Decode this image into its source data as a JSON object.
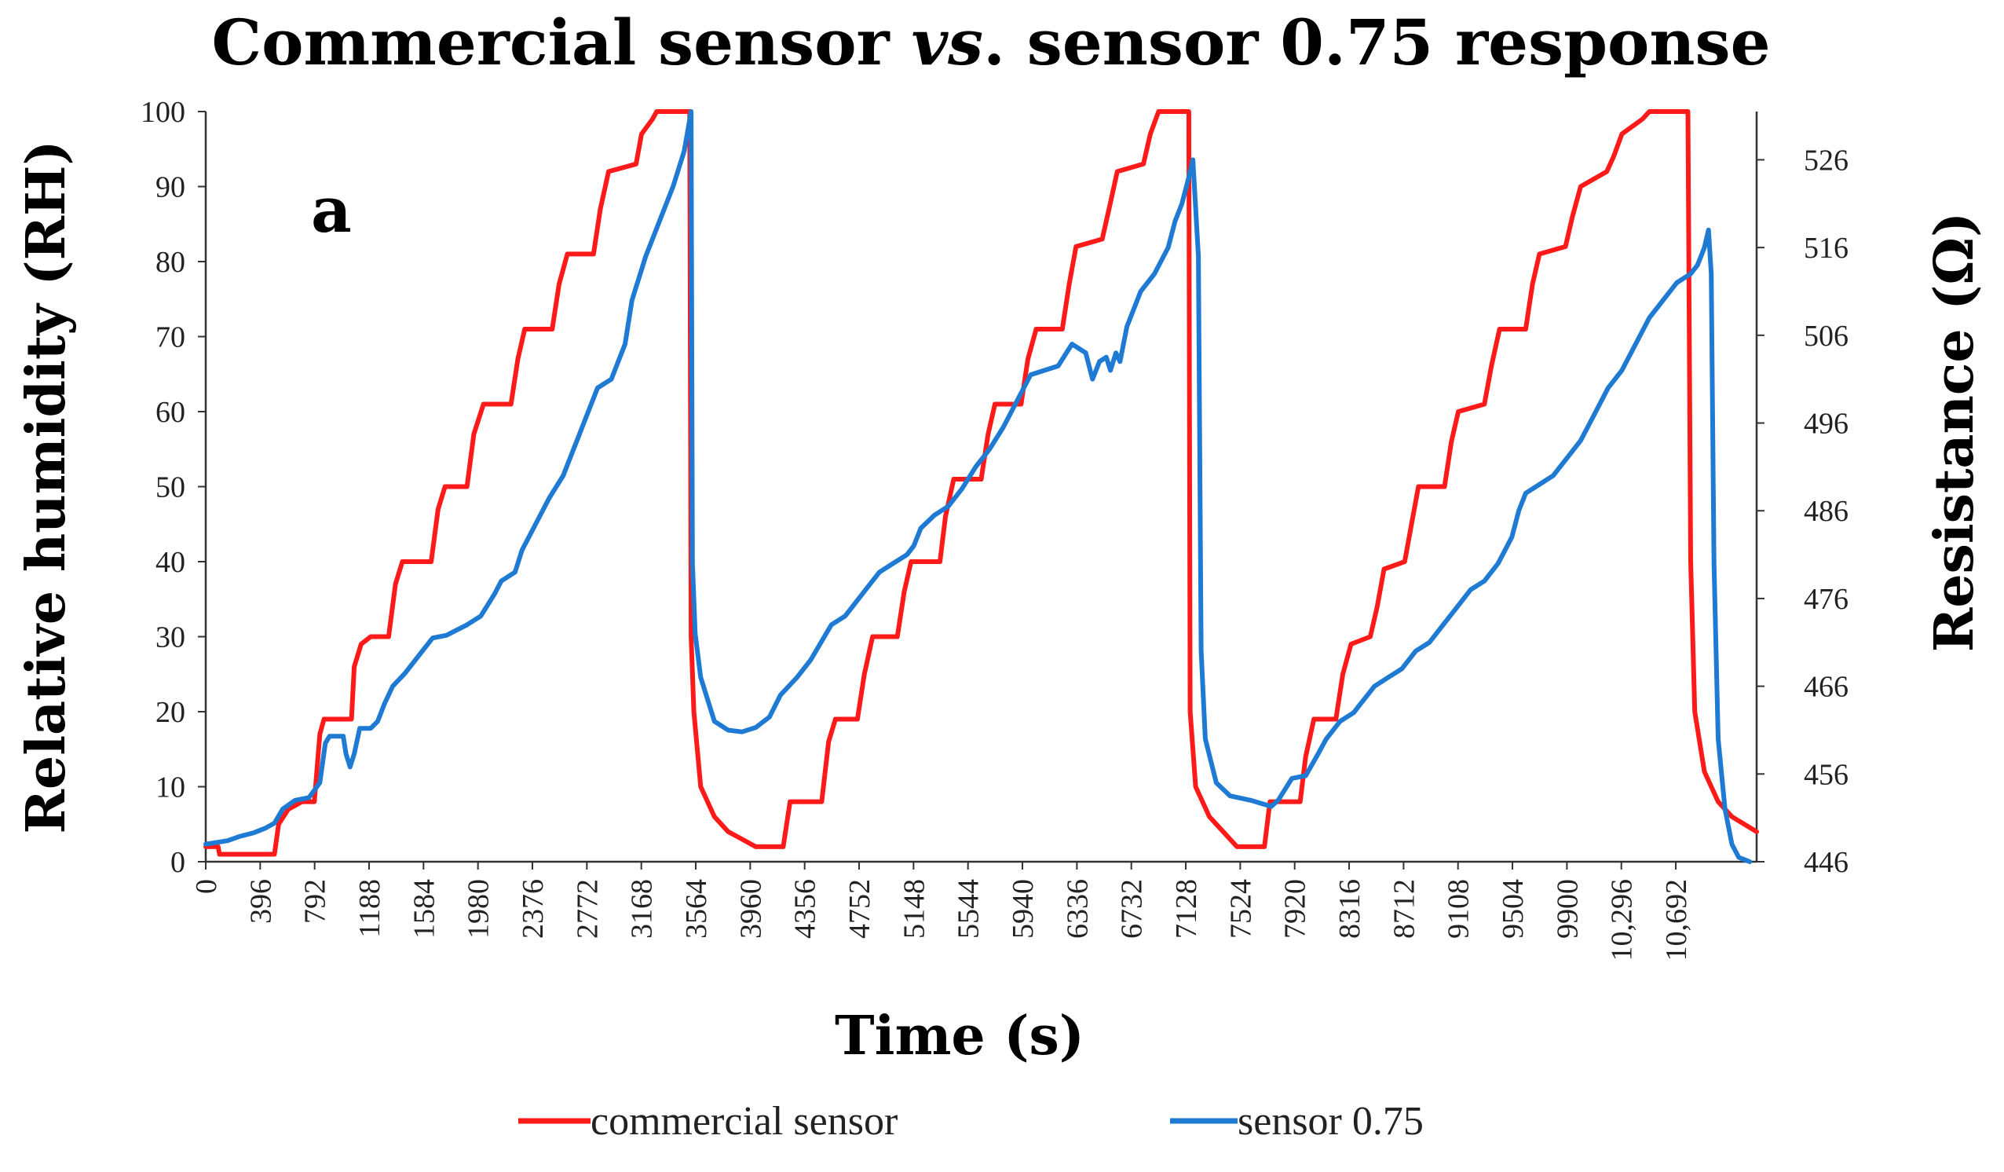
{
  "chart_data": {
    "type": "line",
    "title": {
      "prefix": "Commercial sensor ",
      "italic": "vs",
      "suffix": ". sensor 0.75 response"
    },
    "panel_label": "a",
    "xlabel": "Time (s)",
    "ylabel": "Relative humidity (RH)",
    "y2label": "Resistance  (Ω)",
    "xlim": [
      0,
      11280
    ],
    "ylim": [
      0,
      100
    ],
    "y2lim": [
      446,
      531.5
    ],
    "x_ticks": [
      "0",
      "396",
      "792",
      "1188",
      "1584",
      "1980",
      "2376",
      "2772",
      "3168",
      "3564",
      "3960",
      "4356",
      "4752",
      "5148",
      "5544",
      "5940",
      "6336",
      "6732",
      "7128",
      "7524",
      "7920",
      "8316",
      "8712",
      "9108",
      "9504",
      "9900",
      "10,296",
      "10,692"
    ],
    "y_ticks": [
      "0",
      "10",
      "20",
      "30",
      "40",
      "50",
      "60",
      "70",
      "80",
      "90",
      "100"
    ],
    "y2_ticks": [
      "446",
      "456",
      "466",
      "476",
      "486",
      "496",
      "506",
      "516",
      "526"
    ],
    "legend": [
      "commercial sensor",
      "sensor 0.75"
    ],
    "colors": {
      "commercial": "#ff1a1a",
      "sensor": "#1f7ad4",
      "axis": "#333333"
    },
    "series": [
      {
        "name": "commercial sensor",
        "axis": "left",
        "unit": "RH",
        "points": [
          [
            0,
            2
          ],
          [
            90,
            2
          ],
          [
            100,
            1
          ],
          [
            500,
            1
          ],
          [
            530,
            5
          ],
          [
            600,
            7
          ],
          [
            700,
            8
          ],
          [
            790,
            8
          ],
          [
            830,
            17
          ],
          [
            860,
            19
          ],
          [
            1060,
            19
          ],
          [
            1080,
            26
          ],
          [
            1130,
            29
          ],
          [
            1200,
            30
          ],
          [
            1330,
            30
          ],
          [
            1380,
            37
          ],
          [
            1430,
            40
          ],
          [
            1640,
            40
          ],
          [
            1690,
            47
          ],
          [
            1740,
            50
          ],
          [
            1900,
            50
          ],
          [
            1950,
            57
          ],
          [
            2020,
            61
          ],
          [
            2220,
            61
          ],
          [
            2270,
            67
          ],
          [
            2320,
            71
          ],
          [
            2520,
            71
          ],
          [
            2570,
            77
          ],
          [
            2630,
            81
          ],
          [
            2820,
            81
          ],
          [
            2870,
            87
          ],
          [
            2930,
            92
          ],
          [
            3130,
            93
          ],
          [
            3170,
            97
          ],
          [
            3250,
            99
          ],
          [
            3280,
            100
          ],
          [
            3520,
            100
          ],
          [
            3530,
            30
          ],
          [
            3550,
            20
          ],
          [
            3600,
            10
          ],
          [
            3700,
            6
          ],
          [
            3800,
            4
          ],
          [
            3900,
            3
          ],
          [
            4000,
            2
          ],
          [
            4200,
            2
          ],
          [
            4250,
            8
          ],
          [
            4480,
            8
          ],
          [
            4530,
            16
          ],
          [
            4580,
            19
          ],
          [
            4740,
            19
          ],
          [
            4790,
            25
          ],
          [
            4850,
            30
          ],
          [
            5030,
            30
          ],
          [
            5080,
            36
          ],
          [
            5130,
            40
          ],
          [
            5340,
            40
          ],
          [
            5380,
            46
          ],
          [
            5440,
            51
          ],
          [
            5640,
            51
          ],
          [
            5690,
            57
          ],
          [
            5740,
            61
          ],
          [
            5930,
            61
          ],
          [
            5980,
            67
          ],
          [
            6040,
            71
          ],
          [
            6230,
            71
          ],
          [
            6280,
            77
          ],
          [
            6330,
            82
          ],
          [
            6520,
            83
          ],
          [
            6570,
            87
          ],
          [
            6630,
            92
          ],
          [
            6820,
            93
          ],
          [
            6870,
            97
          ],
          [
            6930,
            100
          ],
          [
            7150,
            100
          ],
          [
            7160,
            20
          ],
          [
            7200,
            10
          ],
          [
            7300,
            6
          ],
          [
            7400,
            4
          ],
          [
            7500,
            2
          ],
          [
            7700,
            2
          ],
          [
            7740,
            8
          ],
          [
            7960,
            8
          ],
          [
            8000,
            14
          ],
          [
            8060,
            19
          ],
          [
            8220,
            19
          ],
          [
            8270,
            25
          ],
          [
            8330,
            29
          ],
          [
            8470,
            30
          ],
          [
            8520,
            34
          ],
          [
            8570,
            39
          ],
          [
            8720,
            40
          ],
          [
            8770,
            45
          ],
          [
            8820,
            50
          ],
          [
            9010,
            50
          ],
          [
            9060,
            56
          ],
          [
            9110,
            60
          ],
          [
            9300,
            61
          ],
          [
            9350,
            66
          ],
          [
            9410,
            71
          ],
          [
            9600,
            71
          ],
          [
            9650,
            77
          ],
          [
            9700,
            81
          ],
          [
            9890,
            82
          ],
          [
            9940,
            86
          ],
          [
            10000,
            90
          ],
          [
            10190,
            92
          ],
          [
            10240,
            94
          ],
          [
            10300,
            97
          ],
          [
            10450,
            99
          ],
          [
            10500,
            100
          ],
          [
            10780,
            100
          ],
          [
            10800,
            40
          ],
          [
            10830,
            20
          ],
          [
            10900,
            12
          ],
          [
            11000,
            8
          ],
          [
            11100,
            6
          ],
          [
            11280,
            4
          ]
        ]
      },
      {
        "name": "sensor 0.75",
        "axis": "right",
        "unit": "Ω",
        "points": [
          [
            0,
            448
          ],
          [
            80,
            448.2
          ],
          [
            160,
            448.4
          ],
          [
            250,
            448.9
          ],
          [
            350,
            449.3
          ],
          [
            430,
            449.8
          ],
          [
            500,
            450.4
          ],
          [
            560,
            452
          ],
          [
            650,
            453
          ],
          [
            750,
            453.3
          ],
          [
            830,
            455
          ],
          [
            870,
            459.5
          ],
          [
            900,
            460.3
          ],
          [
            1000,
            460.3
          ],
          [
            1020,
            458.3
          ],
          [
            1050,
            456.8
          ],
          [
            1080,
            458.3
          ],
          [
            1120,
            461.2
          ],
          [
            1200,
            461.2
          ],
          [
            1250,
            462
          ],
          [
            1300,
            464
          ],
          [
            1360,
            466
          ],
          [
            1450,
            467.5
          ],
          [
            1550,
            469.5
          ],
          [
            1650,
            471.5
          ],
          [
            1750,
            471.8
          ],
          [
            1900,
            473
          ],
          [
            2000,
            474
          ],
          [
            2100,
            476.5
          ],
          [
            2150,
            478
          ],
          [
            2250,
            479
          ],
          [
            2300,
            481.5
          ],
          [
            2400,
            484.5
          ],
          [
            2500,
            487.5
          ],
          [
            2600,
            490
          ],
          [
            2700,
            494
          ],
          [
            2800,
            498
          ],
          [
            2850,
            500
          ],
          [
            2950,
            501
          ],
          [
            3050,
            505
          ],
          [
            3100,
            510
          ],
          [
            3200,
            515
          ],
          [
            3300,
            519
          ],
          [
            3400,
            523
          ],
          [
            3480,
            527
          ],
          [
            3530,
            531.5
          ],
          [
            3540,
            480
          ],
          [
            3560,
            472
          ],
          [
            3600,
            467
          ],
          [
            3700,
            462
          ],
          [
            3800,
            461
          ],
          [
            3900,
            460.8
          ],
          [
            4000,
            461.3
          ],
          [
            4100,
            462.5
          ],
          [
            4180,
            465
          ],
          [
            4300,
            467
          ],
          [
            4400,
            469
          ],
          [
            4550,
            473
          ],
          [
            4650,
            474
          ],
          [
            4700,
            475
          ],
          [
            4800,
            477
          ],
          [
            4900,
            479
          ],
          [
            5000,
            480
          ],
          [
            5100,
            481
          ],
          [
            5150,
            482
          ],
          [
            5200,
            484
          ],
          [
            5300,
            485.5
          ],
          [
            5400,
            486.5
          ],
          [
            5500,
            488.5
          ],
          [
            5600,
            491
          ],
          [
            5700,
            493
          ],
          [
            5800,
            495.5
          ],
          [
            5900,
            498.5
          ],
          [
            6000,
            501.5
          ],
          [
            6100,
            502
          ],
          [
            6200,
            502.5
          ],
          [
            6300,
            505
          ],
          [
            6400,
            504
          ],
          [
            6450,
            501
          ],
          [
            6500,
            503
          ],
          [
            6550,
            503.5
          ],
          [
            6580,
            502
          ],
          [
            6620,
            504
          ],
          [
            6650,
            503
          ],
          [
            6700,
            507
          ],
          [
            6800,
            511
          ],
          [
            6900,
            513
          ],
          [
            7000,
            516
          ],
          [
            7050,
            519
          ],
          [
            7100,
            521
          ],
          [
            7150,
            524
          ],
          [
            7180,
            526
          ],
          [
            7220,
            515
          ],
          [
            7240,
            470
          ],
          [
            7270,
            460
          ],
          [
            7350,
            455
          ],
          [
            7450,
            453.5
          ],
          [
            7600,
            453
          ],
          [
            7750,
            452.3
          ],
          [
            7800,
            453
          ],
          [
            7900,
            455.5
          ],
          [
            8000,
            455.8
          ],
          [
            8080,
            458
          ],
          [
            8150,
            460
          ],
          [
            8250,
            462
          ],
          [
            8350,
            463
          ],
          [
            8400,
            464
          ],
          [
            8500,
            466
          ],
          [
            8600,
            467
          ],
          [
            8700,
            468
          ],
          [
            8800,
            470
          ],
          [
            8900,
            471
          ],
          [
            9000,
            473
          ],
          [
            9100,
            475
          ],
          [
            9200,
            477
          ],
          [
            9300,
            478
          ],
          [
            9400,
            480
          ],
          [
            9500,
            483
          ],
          [
            9550,
            486
          ],
          [
            9600,
            488
          ],
          [
            9700,
            489
          ],
          [
            9800,
            490
          ],
          [
            9900,
            492
          ],
          [
            10000,
            494
          ],
          [
            10100,
            497
          ],
          [
            10200,
            500
          ],
          [
            10300,
            502
          ],
          [
            10400,
            505
          ],
          [
            10500,
            508
          ],
          [
            10600,
            510
          ],
          [
            10700,
            512
          ],
          [
            10800,
            513
          ],
          [
            10850,
            514
          ],
          [
            10900,
            516
          ],
          [
            10930,
            518
          ],
          [
            10950,
            513
          ],
          [
            10970,
            480
          ],
          [
            11000,
            460
          ],
          [
            11050,
            452
          ],
          [
            11100,
            448
          ],
          [
            11150,
            446.5
          ],
          [
            11230,
            446
          ]
        ]
      }
    ]
  }
}
